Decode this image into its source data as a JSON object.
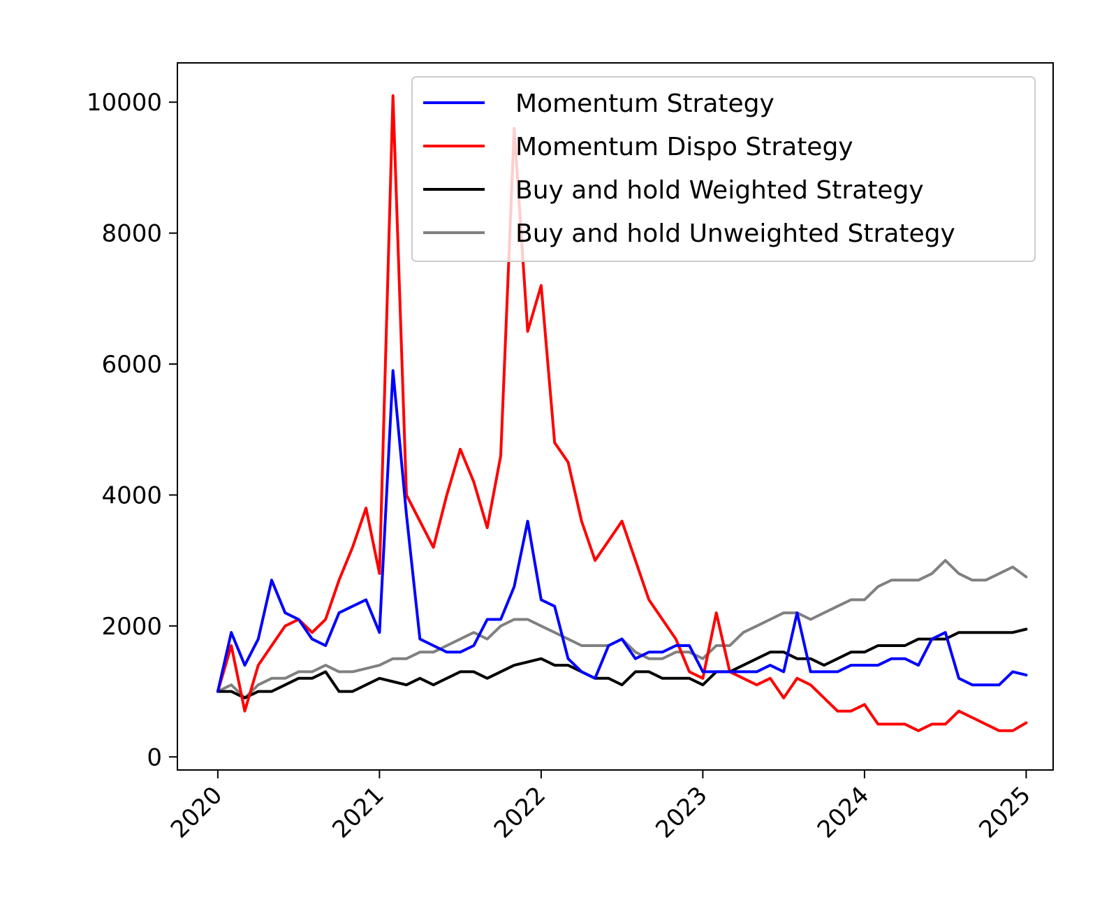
{
  "chart_data": {
    "type": "line",
    "title": "",
    "xlabel": "",
    "ylabel": "",
    "xlim": [
      "2019-10",
      "2025-03"
    ],
    "ylim": [
      -200,
      10600
    ],
    "x_ticks": [
      "2020",
      "2021",
      "2022",
      "2023",
      "2024",
      "2025"
    ],
    "y_ticks": [
      0,
      2000,
      4000,
      6000,
      8000,
      10000
    ],
    "grid": false,
    "legend_position": "top-right",
    "x": [
      "2020-01",
      "2020-02",
      "2020-03",
      "2020-04",
      "2020-05",
      "2020-06",
      "2020-07",
      "2020-08",
      "2020-09",
      "2020-10",
      "2020-11",
      "2020-12",
      "2021-01",
      "2021-02",
      "2021-03",
      "2021-04",
      "2021-05",
      "2021-06",
      "2021-07",
      "2021-08",
      "2021-09",
      "2021-10",
      "2021-11",
      "2021-12",
      "2022-01",
      "2022-02",
      "2022-03",
      "2022-04",
      "2022-05",
      "2022-06",
      "2022-07",
      "2022-08",
      "2022-09",
      "2022-10",
      "2022-11",
      "2022-12",
      "2023-01",
      "2023-02",
      "2023-03",
      "2023-04",
      "2023-05",
      "2023-06",
      "2023-07",
      "2023-08",
      "2023-09",
      "2023-10",
      "2023-11",
      "2023-12",
      "2024-01",
      "2024-02",
      "2024-03",
      "2024-04",
      "2024-05",
      "2024-06",
      "2024-07",
      "2024-08",
      "2024-09",
      "2024-10",
      "2024-11",
      "2024-12",
      "2025-01"
    ],
    "series": [
      {
        "name": "Momentum Strategy",
        "color": "#0000ff",
        "values": [
          1000,
          1900,
          1400,
          1800,
          2700,
          2200,
          2100,
          1800,
          1700,
          2200,
          2300,
          2400,
          1900,
          5900,
          3700,
          1800,
          1700,
          1600,
          1600,
          1700,
          2100,
          2100,
          2600,
          3600,
          2400,
          2300,
          1500,
          1300,
          1200,
          1700,
          1800,
          1500,
          1600,
          1600,
          1700,
          1700,
          1300,
          1300,
          1300,
          1300,
          1300,
          1400,
          1300,
          2200,
          1300,
          1300,
          1300,
          1400,
          1400,
          1400,
          1500,
          1500,
          1400,
          1800,
          1900,
          1200,
          1100,
          1100,
          1100,
          1300,
          1250
        ]
      },
      {
        "name": "Momentum Dispo Strategy",
        "color": "#ff0000",
        "values": [
          1000,
          1700,
          700,
          1400,
          1700,
          2000,
          2100,
          1900,
          2100,
          2700,
          3200,
          3800,
          2800,
          10100,
          4000,
          3600,
          3200,
          4000,
          4700,
          4200,
          3500,
          4600,
          9600,
          6500,
          7200,
          4800,
          4500,
          3600,
          3000,
          3300,
          3600,
          3000,
          2400,
          2100,
          1800,
          1300,
          1200,
          2200,
          1300,
          1200,
          1100,
          1200,
          900,
          1200,
          1100,
          900,
          700,
          700,
          800,
          500,
          500,
          500,
          400,
          500,
          500,
          700,
          600,
          500,
          400,
          400,
          520
        ]
      },
      {
        "name": "Buy and hold Weighted Strategy",
        "color": "#000000",
        "values": [
          1000,
          1000,
          900,
          1000,
          1000,
          1100,
          1200,
          1200,
          1300,
          1000,
          1000,
          1100,
          1200,
          1150,
          1100,
          1200,
          1100,
          1200,
          1300,
          1300,
          1200,
          1300,
          1400,
          1450,
          1500,
          1400,
          1400,
          1300,
          1200,
          1200,
          1100,
          1300,
          1300,
          1200,
          1200,
          1200,
          1100,
          1300,
          1300,
          1400,
          1500,
          1600,
          1600,
          1500,
          1500,
          1400,
          1500,
          1600,
          1600,
          1700,
          1700,
          1700,
          1800,
          1800,
          1800,
          1900,
          1900,
          1900,
          1900,
          1900,
          1950
        ]
      },
      {
        "name": "Buy and hold Unweighted Strategy",
        "color": "#808080",
        "values": [
          1000,
          1100,
          900,
          1100,
          1200,
          1200,
          1300,
          1300,
          1400,
          1300,
          1300,
          1350,
          1400,
          1500,
          1500,
          1600,
          1600,
          1700,
          1800,
          1900,
          1800,
          2000,
          2100,
          2100,
          2000,
          1900,
          1800,
          1700,
          1700,
          1700,
          1800,
          1600,
          1500,
          1500,
          1600,
          1600,
          1500,
          1700,
          1700,
          1900,
          2000,
          2100,
          2200,
          2200,
          2100,
          2200,
          2300,
          2400,
          2400,
          2600,
          2700,
          2700,
          2700,
          2800,
          3000,
          2800,
          2700,
          2700,
          2800,
          2900,
          2750
        ]
      }
    ]
  }
}
